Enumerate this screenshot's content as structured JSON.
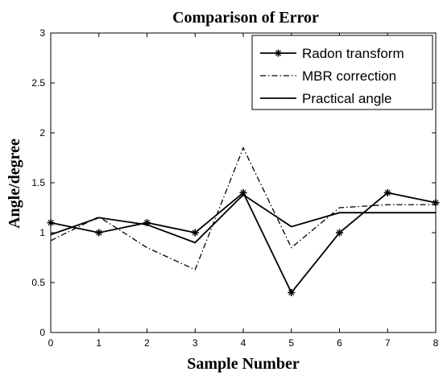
{
  "chart_data": {
    "type": "line",
    "title": "Comparison of Error",
    "xlabel": "Sample Number",
    "ylabel": "Angle/degree",
    "xlim": [
      0,
      8
    ],
    "ylim": [
      0,
      3
    ],
    "xticks": [
      "0",
      "1",
      "2",
      "3",
      "4",
      "5",
      "6",
      "7",
      "8"
    ],
    "yticks": [
      "0",
      "0.5",
      "1",
      "1.5",
      "2",
      "2.5",
      "3"
    ],
    "grid": false,
    "legend_position": "top-right",
    "x": [
      0,
      1,
      2,
      3,
      4,
      5,
      6,
      7,
      8
    ],
    "series": [
      {
        "name": "Radon transform",
        "style": "solid-star",
        "color": "#000000",
        "values": [
          1.1,
          1.0,
          1.1,
          1.0,
          1.4,
          0.4,
          1.0,
          1.4,
          1.3
        ]
      },
      {
        "name": "MBR correction",
        "style": "dash-dot",
        "color": "#000000",
        "values": [
          0.92,
          1.16,
          0.85,
          0.63,
          1.85,
          0.85,
          1.25,
          1.28,
          1.28
        ]
      },
      {
        "name": "Practical angle",
        "style": "solid",
        "color": "#000000",
        "values": [
          0.98,
          1.15,
          1.08,
          0.9,
          1.38,
          1.06,
          1.2,
          1.2,
          1.2
        ]
      }
    ]
  }
}
